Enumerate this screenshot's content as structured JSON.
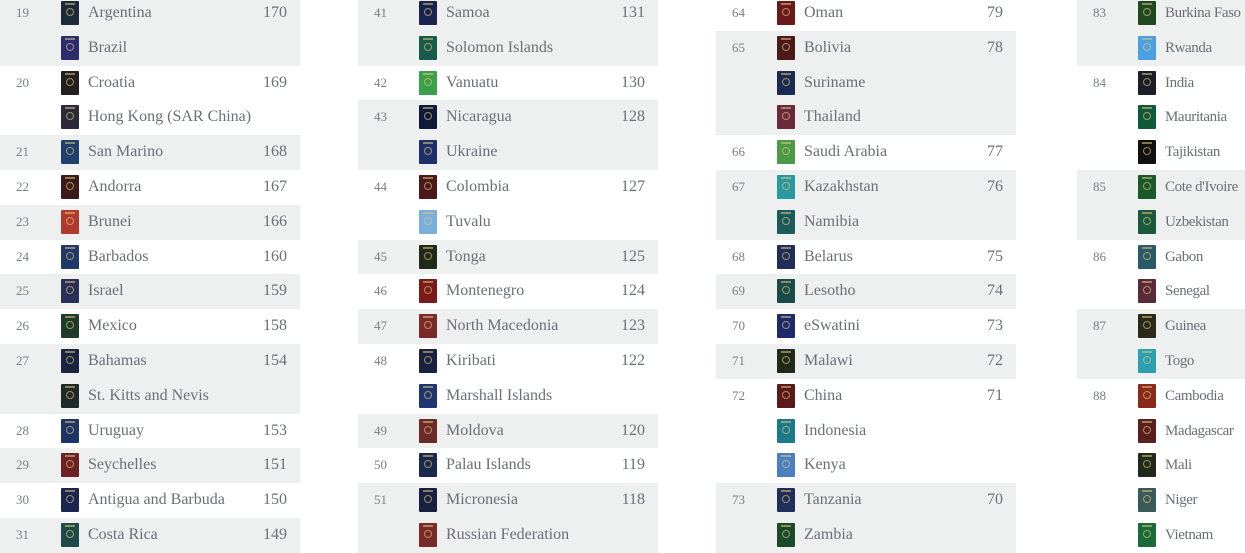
{
  "columns": [
    {
      "groups": [
        {
          "rank": "19",
          "score": "170",
          "countries": [
            {
              "name": "Argentina",
              "color": "#1c2a3a"
            },
            {
              "name": "Brazil",
              "color": "#2b2d6e"
            }
          ]
        },
        {
          "rank": "20",
          "score": "169",
          "countries": [
            {
              "name": "Croatia",
              "color": "#231f20"
            },
            {
              "name": "Hong Kong (SAR China)",
              "color": "#2a2a3a"
            }
          ]
        },
        {
          "rank": "21",
          "score": "168",
          "countries": [
            {
              "name": "San Marino",
              "color": "#1f3f6e"
            }
          ]
        },
        {
          "rank": "22",
          "score": "167",
          "countries": [
            {
              "name": "Andorra",
              "color": "#3a1a1a"
            }
          ]
        },
        {
          "rank": "23",
          "score": "166",
          "countries": [
            {
              "name": "Brunei",
              "color": "#b03a2e"
            }
          ]
        },
        {
          "rank": "24",
          "score": "160",
          "countries": [
            {
              "name": "Barbados",
              "color": "#1f3a6a"
            }
          ]
        },
        {
          "rank": "25",
          "score": "159",
          "countries": [
            {
              "name": "Israel",
              "color": "#2a2f5a"
            }
          ]
        },
        {
          "rank": "26",
          "score": "158",
          "countries": [
            {
              "name": "Mexico",
              "color": "#1e3a2a"
            }
          ]
        },
        {
          "rank": "27",
          "score": "154",
          "countries": [
            {
              "name": "Bahamas",
              "color": "#1a2340"
            },
            {
              "name": "St. Kitts and Nevis",
              "color": "#1f2a2a"
            }
          ]
        },
        {
          "rank": "28",
          "score": "153",
          "countries": [
            {
              "name": "Uruguay",
              "color": "#1d3566"
            }
          ]
        },
        {
          "rank": "29",
          "score": "151",
          "countries": [
            {
              "name": "Seychelles",
              "color": "#6b2222"
            }
          ]
        },
        {
          "rank": "30",
          "score": "150",
          "countries": [
            {
              "name": "Antigua and Barbuda",
              "color": "#1a2550"
            }
          ]
        },
        {
          "rank": "31",
          "score": "149",
          "countries": [
            {
              "name": "Costa Rica",
              "color": "#1f4a4a"
            }
          ]
        }
      ]
    },
    {
      "groups": [
        {
          "rank": "41",
          "score": "131",
          "countries": [
            {
              "name": "Samoa",
              "color": "#1a2350"
            },
            {
              "name": "Solomon Islands",
              "color": "#1a5a4a"
            }
          ]
        },
        {
          "rank": "42",
          "score": "130",
          "countries": [
            {
              "name": "Vanuatu",
              "color": "#3aa04a"
            }
          ]
        },
        {
          "rank": "43",
          "score": "128",
          "countries": [
            {
              "name": "Nicaragua",
              "color": "#0f1a3a"
            },
            {
              "name": "Ukraine",
              "color": "#1f2f6a"
            }
          ]
        },
        {
          "rank": "44",
          "score": "127",
          "countries": [
            {
              "name": "Colombia",
              "color": "#4a1a1a"
            },
            {
              "name": "Tuvalu",
              "color": "#7ab0e0"
            }
          ]
        },
        {
          "rank": "45",
          "score": "125",
          "countries": [
            {
              "name": "Tonga",
              "color": "#1f2a1a"
            }
          ]
        },
        {
          "rank": "46",
          "score": "124",
          "countries": [
            {
              "name": "Montenegro",
              "color": "#7a1a1a"
            }
          ]
        },
        {
          "rank": "47",
          "score": "123",
          "countries": [
            {
              "name": "North Macedonia",
              "color": "#7a2a2a"
            }
          ]
        },
        {
          "rank": "48",
          "score": "122",
          "countries": [
            {
              "name": "Kiribati",
              "color": "#1a2040"
            },
            {
              "name": "Marshall Islands",
              "color": "#1f3570"
            }
          ]
        },
        {
          "rank": "49",
          "score": "120",
          "countries": [
            {
              "name": "Moldova",
              "color": "#6a2a2a"
            }
          ]
        },
        {
          "rank": "50",
          "score": "119",
          "countries": [
            {
              "name": "Palau Islands",
              "color": "#1a2a4a"
            }
          ]
        },
        {
          "rank": "51",
          "score": "118",
          "countries": [
            {
              "name": "Micronesia",
              "color": "#1a2040"
            },
            {
              "name": "Russian Federation",
              "color": "#7a2a2a"
            }
          ]
        }
      ]
    },
    {
      "groups": [
        {
          "rank": "64",
          "score": "79",
          "countries": [
            {
              "name": "Oman",
              "color": "#6a1a1a"
            }
          ]
        },
        {
          "rank": "65",
          "score": "78",
          "countries": [
            {
              "name": "Bolivia",
              "color": "#4a1a1a"
            },
            {
              "name": "Suriname",
              "color": "#1a2a50"
            },
            {
              "name": "Thailand",
              "color": "#6a2a3a"
            }
          ]
        },
        {
          "rank": "66",
          "score": "77",
          "countries": [
            {
              "name": "Saudi Arabia",
              "color": "#4a9a4a"
            }
          ]
        },
        {
          "rank": "67",
          "score": "76",
          "countries": [
            {
              "name": "Kazakhstan",
              "color": "#2a9aa0"
            },
            {
              "name": "Namibia",
              "color": "#1a5a5a"
            }
          ]
        },
        {
          "rank": "68",
          "score": "75",
          "countries": [
            {
              "name": "Belarus",
              "color": "#1f2f5a"
            }
          ]
        },
        {
          "rank": "69",
          "score": "74",
          "countries": [
            {
              "name": "Lesotho",
              "color": "#1a4a4a"
            }
          ]
        },
        {
          "rank": "70",
          "score": "73",
          "countries": [
            {
              "name": "eSwatini",
              "color": "#1f2a6a"
            }
          ]
        },
        {
          "rank": "71",
          "score": "72",
          "countries": [
            {
              "name": "Malawi",
              "color": "#1f2a1a"
            }
          ]
        },
        {
          "rank": "72",
          "score": "71",
          "countries": [
            {
              "name": "China",
              "color": "#5a1a1a"
            },
            {
              "name": "Indonesia",
              "color": "#1a7a8a"
            },
            {
              "name": "Kenya",
              "color": "#4a80c0"
            }
          ]
        },
        {
          "rank": "73",
          "score": "70",
          "countries": [
            {
              "name": "Tanzania",
              "color": "#1f2f5a"
            },
            {
              "name": "Zambia",
              "color": "#1a4a2a"
            }
          ]
        }
      ]
    },
    {
      "groups": [
        {
          "rank": "83",
          "countries": [
            {
              "name": "Burkina Faso",
              "color": "#1f4a1f"
            },
            {
              "name": "Rwanda",
              "color": "#4aa0e0"
            }
          ]
        },
        {
          "rank": "84",
          "countries": [
            {
              "name": "India",
              "color": "#1a1f2a"
            },
            {
              "name": "Mauritania",
              "color": "#0f5a3a"
            },
            {
              "name": "Tajikistan",
              "color": "#101010"
            }
          ]
        },
        {
          "rank": "85",
          "countries": [
            {
              "name": "Cote d'Ivoire",
              "color": "#1a5a2a"
            },
            {
              "name": "Uzbekistan",
              "color": "#1a5a3a"
            }
          ]
        },
        {
          "rank": "86",
          "countries": [
            {
              "name": "Gabon",
              "color": "#2a5a6a"
            },
            {
              "name": "Senegal",
              "color": "#5a2a3a"
            }
          ]
        },
        {
          "rank": "87",
          "countries": [
            {
              "name": "Guinea",
              "color": "#2a2a1a"
            },
            {
              "name": "Togo",
              "color": "#2aa0b0"
            }
          ]
        },
        {
          "rank": "88",
          "countries": [
            {
              "name": "Cambodia",
              "color": "#8a2a1a"
            },
            {
              "name": "Madagascar",
              "color": "#5a2020"
            },
            {
              "name": "Mali",
              "color": "#1f2a1a"
            },
            {
              "name": "Niger",
              "color": "#3a5a5a"
            },
            {
              "name": "Vietnam",
              "color": "#1a6a3a"
            }
          ]
        }
      ]
    }
  ]
}
